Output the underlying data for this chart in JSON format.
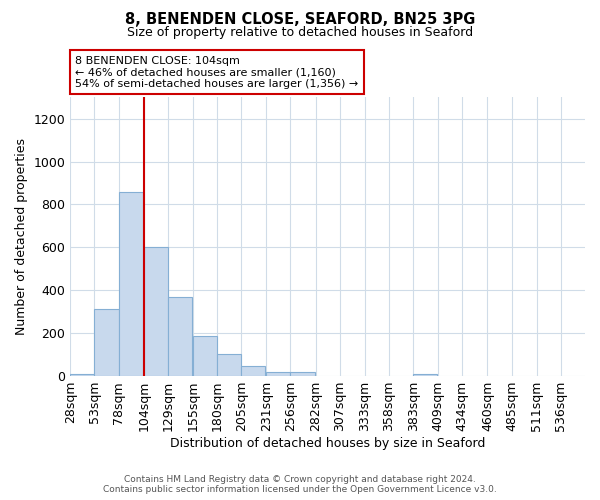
{
  "title": "8, BENENDEN CLOSE, SEAFORD, BN25 3PG",
  "subtitle": "Size of property relative to detached houses in Seaford",
  "xlabel": "Distribution of detached houses by size in Seaford",
  "ylabel": "Number of detached properties",
  "footer_line1": "Contains HM Land Registry data © Crown copyright and database right 2024.",
  "footer_line2": "Contains public sector information licensed under the Open Government Licence v3.0.",
  "bar_left_edges": [
    28,
    53,
    78,
    104,
    129,
    155,
    180,
    205,
    231,
    256,
    282,
    307,
    333,
    358,
    383,
    409,
    434,
    460,
    485,
    511
  ],
  "bar_heights": [
    10,
    315,
    860,
    600,
    370,
    185,
    105,
    45,
    20,
    20,
    0,
    0,
    0,
    0,
    10,
    0,
    0,
    0,
    0,
    0
  ],
  "bin_width": 25,
  "bar_color": "#c8d9ed",
  "bar_edgecolor": "#85afd4",
  "vline_x": 104,
  "vline_color": "#cc0000",
  "annotation_title": "8 BENENDEN CLOSE: 104sqm",
  "annotation_line1": "← 46% of detached houses are smaller (1,160)",
  "annotation_line2": "54% of semi-detached houses are larger (1,356) →",
  "annotation_box_color": "#cc0000",
  "xlim_left": 28,
  "xlim_right": 561,
  "ylim_top": 1300,
  "tick_labels": [
    "28sqm",
    "53sqm",
    "78sqm",
    "104sqm",
    "129sqm",
    "155sqm",
    "180sqm",
    "205sqm",
    "231sqm",
    "256sqm",
    "282sqm",
    "307sqm",
    "333sqm",
    "358sqm",
    "383sqm",
    "409sqm",
    "434sqm",
    "460sqm",
    "485sqm",
    "511sqm",
    "536sqm"
  ],
  "tick_positions": [
    28,
    53,
    78,
    104,
    129,
    155,
    180,
    205,
    231,
    256,
    282,
    307,
    333,
    358,
    383,
    409,
    434,
    460,
    485,
    511,
    536
  ],
  "yticks": [
    0,
    200,
    400,
    600,
    800,
    1000,
    1200
  ],
  "background_color": "#ffffff",
  "grid_color": "#d0dce8"
}
